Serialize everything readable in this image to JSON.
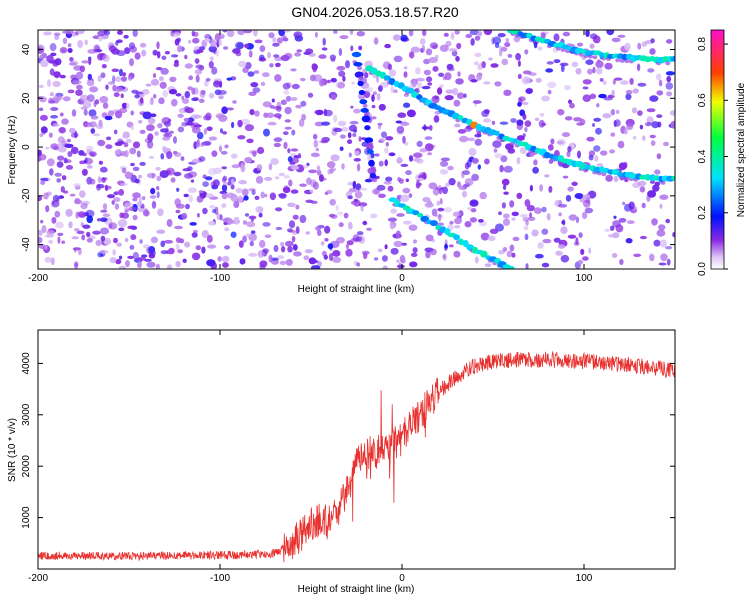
{
  "title": "GN04.2026.053.18.57.R20",
  "colors": {
    "snr_line": "#e8312e",
    "axis": "#000000",
    "background": "#ffffff"
  },
  "chart_data": [
    {
      "type": "heatmap",
      "xlabel": "Height of straight line (km)",
      "ylabel": "Frequency (Hz)",
      "xlim": [
        -200,
        150
      ],
      "ylim": [
        -50,
        48
      ],
      "x_ticks": [
        -200,
        -100,
        0,
        100
      ],
      "y_ticks": [
        -40,
        -20,
        0,
        20,
        40
      ],
      "colorbar": {
        "label": "Normalized spectral amplitude",
        "range": [
          0.0,
          0.85
        ],
        "ticks": [
          0.0,
          0.2,
          0.4,
          0.6,
          0.8
        ],
        "colormap": "rainbow (white-purple-blue-cyan-green-yellow-red-magenta)"
      },
      "ridges": [
        {
          "x": [
            -18,
            0,
            20,
            40,
            60,
            80,
            100,
            120,
            140,
            150
          ],
          "y": [
            32,
            25,
            16,
            9,
            3,
            -3,
            -8,
            -11,
            -13,
            -13
          ]
        },
        {
          "x": [
            60,
            80,
            100,
            120,
            140,
            150
          ],
          "y": [
            48,
            43,
            39,
            37,
            36,
            36
          ]
        },
        {
          "x": [
            -5,
            10,
            25,
            40,
            55,
            60
          ],
          "y": [
            -22,
            -28,
            -35,
            -42,
            -48,
            -50
          ]
        },
        {
          "x": [
            -25,
            -22,
            -19,
            -16
          ],
          "y": [
            38,
            22,
            8,
            -12
          ]
        }
      ],
      "grid": false
    },
    {
      "type": "line",
      "xlabel": "Height of straight line (km)",
      "ylabel": "SNR (10 * v/v)",
      "xlim": [
        -200,
        150
      ],
      "ylim": [
        0,
        4650
      ],
      "x_ticks": [
        -200,
        -100,
        0,
        100
      ],
      "y_ticks": [
        1000,
        2000,
        3000,
        4000
      ],
      "trend": {
        "x": [
          -200,
          -150,
          -100,
          -70,
          -60,
          -50,
          -45,
          -40,
          -35,
          -30,
          -25,
          -20,
          -15,
          -10,
          -5,
          0,
          5,
          10,
          15,
          20,
          30,
          40,
          50,
          70,
          90,
          110,
          130,
          150
        ],
        "y": [
          260,
          250,
          270,
          300,
          520,
          850,
          950,
          900,
          1100,
          1500,
          2000,
          2200,
          2300,
          2400,
          2400,
          2550,
          2800,
          3000,
          3200,
          3450,
          3750,
          3950,
          4050,
          4080,
          4060,
          4020,
          3950,
          3870
        ]
      },
      "grid": false
    }
  ]
}
